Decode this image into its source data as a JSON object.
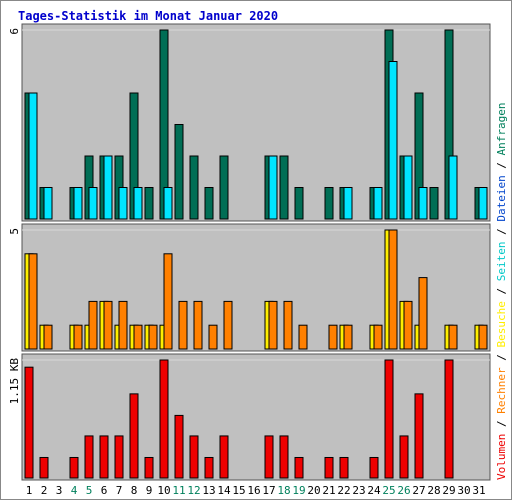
{
  "chart_data": [
    {
      "type": "bar",
      "title": "Tages-Statistik im Monat Januar 2020",
      "ymax_label": "6",
      "ylim": [
        0,
        6
      ],
      "categories": [
        "1",
        "2",
        "3",
        "4",
        "5",
        "6",
        "7",
        "8",
        "9",
        "10",
        "11",
        "12",
        "13",
        "14",
        "15",
        "16",
        "17",
        "18",
        "19",
        "20",
        "21",
        "22",
        "23",
        "24",
        "25",
        "26",
        "27",
        "28",
        "29",
        "30",
        "31"
      ],
      "series": [
        {
          "name": "Anfragen",
          "color": "#006e55",
          "values": [
            4,
            1,
            0,
            1,
            2,
            2,
            2,
            4,
            1,
            6,
            3,
            2,
            1,
            2,
            0,
            0,
            2,
            2,
            1,
            0,
            1,
            1,
            0,
            1,
            6,
            2,
            4,
            1,
            6,
            0,
            1
          ]
        },
        {
          "name": "Dateien",
          "color": "#00e5ff",
          "values": [
            4,
            1,
            0,
            1,
            1,
            2,
            1,
            1,
            0,
            1,
            0,
            0,
            0,
            0,
            0,
            0,
            2,
            0,
            0,
            0,
            0,
            1,
            0,
            1,
            5,
            2,
            1,
            0,
            2,
            0,
            1
          ]
        }
      ]
    },
    {
      "type": "bar",
      "ymax_label": "5",
      "ylim": [
        0,
        5
      ],
      "categories": [
        "1",
        "2",
        "3",
        "4",
        "5",
        "6",
        "7",
        "8",
        "9",
        "10",
        "11",
        "12",
        "13",
        "14",
        "15",
        "16",
        "17",
        "18",
        "19",
        "20",
        "21",
        "22",
        "23",
        "24",
        "25",
        "26",
        "27",
        "28",
        "29",
        "30",
        "31"
      ],
      "series": [
        {
          "name": "Seiten",
          "color": "#00c8c8",
          "values": [
            0,
            0,
            0,
            0,
            0,
            0,
            0,
            0,
            0,
            0,
            0,
            0,
            0,
            0,
            0,
            0,
            0,
            0,
            0,
            0,
            0,
            0,
            0,
            0,
            0,
            0,
            0,
            0,
            0,
            0,
            0
          ]
        },
        {
          "name": "Besuche",
          "color": "#ffee00",
          "values": [
            4,
            1,
            0,
            1,
            1,
            2,
            1,
            1,
            1,
            1,
            0,
            0,
            0,
            0,
            0,
            0,
            2,
            0,
            0,
            0,
            0,
            1,
            0,
            1,
            5,
            2,
            1,
            0,
            1,
            0,
            1
          ]
        },
        {
          "name": "Rechner",
          "color": "#ff8000",
          "values": [
            4,
            1,
            0,
            1,
            2,
            2,
            2,
            1,
            1,
            4,
            2,
            2,
            1,
            2,
            0,
            0,
            2,
            2,
            1,
            0,
            1,
            1,
            0,
            1,
            5,
            2,
            3,
            0,
            1,
            0,
            1
          ]
        }
      ]
    },
    {
      "type": "bar",
      "ymax_label": "1.15 KB",
      "ylim": [
        0,
        1.15
      ],
      "categories": [
        "1",
        "2",
        "3",
        "4",
        "5",
        "6",
        "7",
        "8",
        "9",
        "10",
        "11",
        "12",
        "13",
        "14",
        "15",
        "16",
        "17",
        "18",
        "19",
        "20",
        "21",
        "22",
        "23",
        "24",
        "25",
        "26",
        "27",
        "28",
        "29",
        "30",
        "31"
      ],
      "series": [
        {
          "name": "Volumen",
          "color": "#ee0000",
          "values": [
            1.08,
            0.2,
            0,
            0.2,
            0.41,
            0.41,
            0.41,
            0.82,
            0.2,
            1.15,
            0.61,
            0.41,
            0.2,
            0.41,
            0,
            0,
            0.41,
            0.41,
            0.2,
            0,
            0.2,
            0.2,
            0,
            0.2,
            1.15,
            0.41,
            0.82,
            0,
            1.15,
            0,
            0
          ]
        }
      ]
    }
  ],
  "x_labels": {
    "weekend_days": [
      4,
      5,
      11,
      12,
      18,
      19,
      25,
      26
    ],
    "weekday_color": "#000000",
    "weekend_color": "#00805c"
  },
  "right_legend": [
    {
      "text": "Volumen",
      "color": "#ee0000"
    },
    {
      "text": " / ",
      "color": "#000000"
    },
    {
      "text": "Rechner",
      "color": "#ff8000"
    },
    {
      "text": " / ",
      "color": "#000000"
    },
    {
      "text": "Besuche",
      "color": "#ffee00"
    },
    {
      "text": " / ",
      "color": "#000000"
    },
    {
      "text": "Seiten",
      "color": "#00c8c8"
    },
    {
      "text": " / ",
      "color": "#000000"
    },
    {
      "text": "Dateien",
      "color": "#0044cc"
    },
    {
      "text": " / ",
      "color": "#000000"
    },
    {
      "text": "Anfragen",
      "color": "#00805c"
    }
  ],
  "colors": {
    "title": "#0000cc",
    "panel_bg": "#c0c0c0",
    "grid": "#d8d8d8"
  }
}
